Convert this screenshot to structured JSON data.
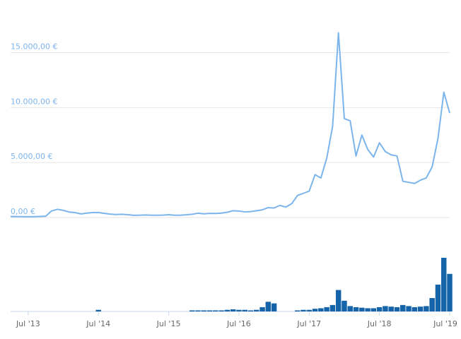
{
  "chart_data": {
    "type": "line",
    "x": [
      "2013-04",
      "2013-05",
      "2013-06",
      "2013-07",
      "2013-08",
      "2013-09",
      "2013-10",
      "2013-11",
      "2013-12",
      "2014-01",
      "2014-02",
      "2014-03",
      "2014-04",
      "2014-05",
      "2014-06",
      "2014-07",
      "2014-08",
      "2014-09",
      "2014-10",
      "2014-11",
      "2014-12",
      "2015-01",
      "2015-02",
      "2015-03",
      "2015-04",
      "2015-05",
      "2015-06",
      "2015-07",
      "2015-08",
      "2015-09",
      "2015-10",
      "2015-11",
      "2015-12",
      "2016-01",
      "2016-02",
      "2016-03",
      "2016-04",
      "2016-05",
      "2016-06",
      "2016-07",
      "2016-08",
      "2016-09",
      "2016-10",
      "2016-11",
      "2016-12",
      "2017-01",
      "2017-02",
      "2017-03",
      "2017-04",
      "2017-05",
      "2017-06",
      "2017-07",
      "2017-08",
      "2017-09",
      "2017-10",
      "2017-11",
      "2017-12",
      "2018-01",
      "2018-02",
      "2018-03",
      "2018-04",
      "2018-05",
      "2018-06",
      "2018-07",
      "2018-08",
      "2018-09",
      "2018-10",
      "2018-11",
      "2018-12",
      "2019-01",
      "2019-02",
      "2019-03",
      "2019-04",
      "2019-05",
      "2019-06",
      "2019-07"
    ],
    "series": [
      {
        "type": "line",
        "color": "#7cb5ec",
        "values": [
          100,
          90,
          80,
          70,
          80,
          95,
          120,
          600,
          750,
          650,
          500,
          450,
          330,
          400,
          450,
          460,
          380,
          310,
          270,
          300,
          260,
          200,
          210,
          230,
          210,
          210,
          220,
          260,
          210,
          210,
          250,
          300,
          390,
          340,
          380,
          370,
          400,
          480,
          620,
          590,
          510,
          540,
          620,
          700,
          900,
          870,
          1100,
          950,
          1250,
          2000,
          2200,
          2400,
          3900,
          3600,
          5400,
          8300,
          16800,
          9000,
          8800,
          5600,
          7500,
          6200,
          5500,
          6800,
          6000,
          5700,
          5600,
          3300,
          3200,
          3100,
          3400,
          3600,
          4600,
          7200,
          11400,
          9500
        ]
      },
      {
        "type": "bar",
        "axis": "y2",
        "color": "#1563a8",
        "values": [
          0,
          0,
          0,
          0,
          0,
          0,
          0,
          0,
          0,
          0,
          0,
          0,
          0,
          0,
          0,
          3,
          0,
          0,
          0,
          0,
          0,
          0,
          0,
          0,
          0,
          0,
          0,
          0,
          0,
          0,
          0,
          2,
          2,
          2,
          2,
          2,
          2,
          3,
          4,
          3,
          3,
          2,
          3,
          8,
          18,
          15,
          0,
          0,
          0,
          2,
          3,
          3,
          5,
          6,
          8,
          12,
          40,
          20,
          10,
          8,
          7,
          6,
          6,
          8,
          10,
          9,
          8,
          12,
          10,
          8,
          9,
          10,
          25,
          50,
          100,
          70
        ]
      }
    ],
    "xlim": [
      "2013-04",
      "2019-07"
    ],
    "xticks": [
      {
        "value": "2013-07",
        "label": "Jul '13"
      },
      {
        "value": "2014-07",
        "label": "Jul '14"
      },
      {
        "value": "2015-07",
        "label": "Jul '15"
      },
      {
        "value": "2016-07",
        "label": "Jul '16"
      },
      {
        "value": "2017-07",
        "label": "Jul '17"
      },
      {
        "value": "2018-07",
        "label": "Jul '18"
      },
      {
        "value": "2019-07",
        "label": "Jul '19"
      }
    ],
    "ylim": [
      0,
      18500
    ],
    "yticks": [
      {
        "value": 0,
        "label": "0,00 €"
      },
      {
        "value": 5000,
        "label": "5.000,00 €"
      },
      {
        "value": 10000,
        "label": "10.000,00 €"
      },
      {
        "value": 15000,
        "label": "15.000,00 €"
      }
    ],
    "y2lim": [
      0,
      100
    ],
    "grid": true
  }
}
